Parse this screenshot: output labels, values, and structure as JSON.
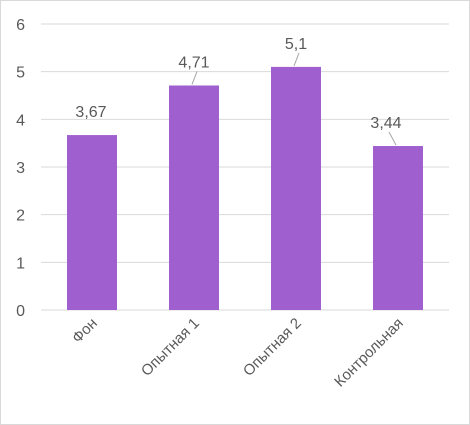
{
  "chart_data": {
    "type": "bar",
    "categories": [
      "Фон",
      "Опытная 1",
      "Опытная 2",
      "Контрольная"
    ],
    "values": [
      3.67,
      4.71,
      5.1,
      3.44
    ],
    "data_labels": [
      "3,67",
      "4,71",
      "5,1",
      "3,44"
    ],
    "ylim": [
      0,
      6
    ],
    "yticks": [
      "0",
      "1",
      "2",
      "3",
      "4",
      "5",
      "6"
    ],
    "title": "",
    "xlabel": "",
    "ylabel": "",
    "grid": true,
    "legend": "none",
    "bar_color": "#a05fcf",
    "grid_color": "#d9d9d9",
    "text_color": "#595959"
  }
}
